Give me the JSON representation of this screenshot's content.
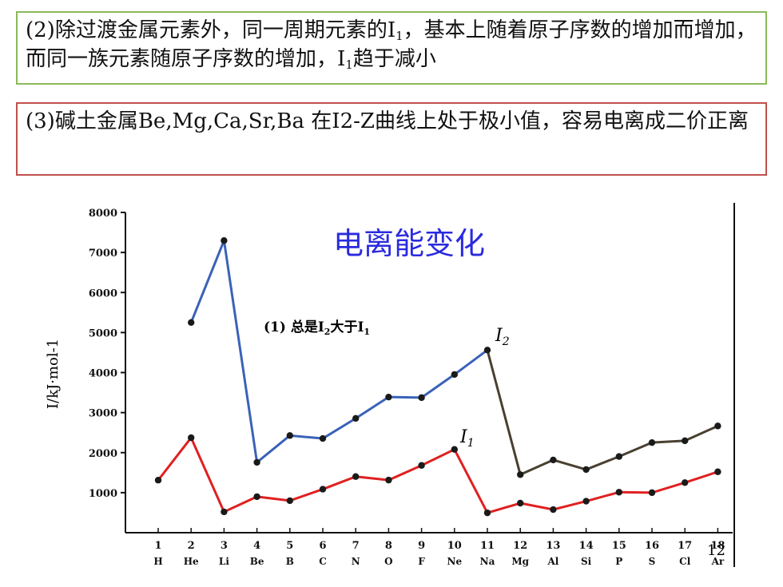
{
  "note2": {
    "pre": "(2)除过渡金属元素外，同一周期元素的I",
    "sub1": "1",
    "mid": "，基本上随着原子序数的增加而增加，而同一族元素随原子序数的增加，I",
    "sub2": "1",
    "post": "趋于减小"
  },
  "note3": {
    "text": "(3)碱土金属Be,Mg,Ca,Sr,Ba 在I2-Z曲线上处于极小值，容易电离成二价正离"
  },
  "page_number": "12",
  "colors": {
    "i1_line": "#e02020",
    "i2_line_early": "#3a62b8",
    "i2_line_late": "#4a4030",
    "title": "#2a2adf"
  },
  "chart_data": {
    "type": "line",
    "title": "电离能变化",
    "annotation": {
      "pre": "(1)  总是I",
      "sub_a": "2",
      "mid": "大于I",
      "sub_b": "1"
    },
    "ylabel": "I/kJ·mol-1",
    "ylim": [
      0,
      8000
    ],
    "yticks": [
      "1000",
      "2000",
      "3000",
      "4000",
      "5000",
      "6000",
      "7000",
      "8000"
    ],
    "x": [
      1,
      2,
      3,
      4,
      5,
      6,
      7,
      8,
      9,
      10,
      11,
      12,
      13,
      14,
      15,
      16,
      17,
      18
    ],
    "xtick_labels": [
      "1",
      "2",
      "3",
      "4",
      "5",
      "6",
      "7",
      "8",
      "9",
      "10",
      "11",
      "12",
      "13",
      "14",
      "15",
      "16",
      "17",
      "18"
    ],
    "element_labels": [
      "H",
      "He",
      "Li",
      "Be",
      "B",
      "C",
      "N",
      "O",
      "F",
      "Ne",
      "Na",
      "Mg",
      "Al",
      "Si",
      "P",
      "S",
      "Cl",
      "Ar"
    ],
    "series": [
      {
        "name": "I1",
        "label_main": "I",
        "label_sub": "1",
        "values": [
          1312,
          2372,
          520,
          900,
          800,
          1086,
          1402,
          1314,
          1681,
          2081,
          496,
          738,
          578,
          787,
          1012,
          1000,
          1251,
          1521
        ]
      },
      {
        "name": "I2",
        "label_main": "I",
        "label_sub": "2",
        "values": [
          null,
          5251,
          7298,
          1757,
          2427,
          2353,
          2856,
          3388,
          3374,
          3952,
          4562,
          1451,
          1817,
          1577,
          1903,
          2251,
          2297,
          2666
        ]
      }
    ],
    "grid": false
  }
}
